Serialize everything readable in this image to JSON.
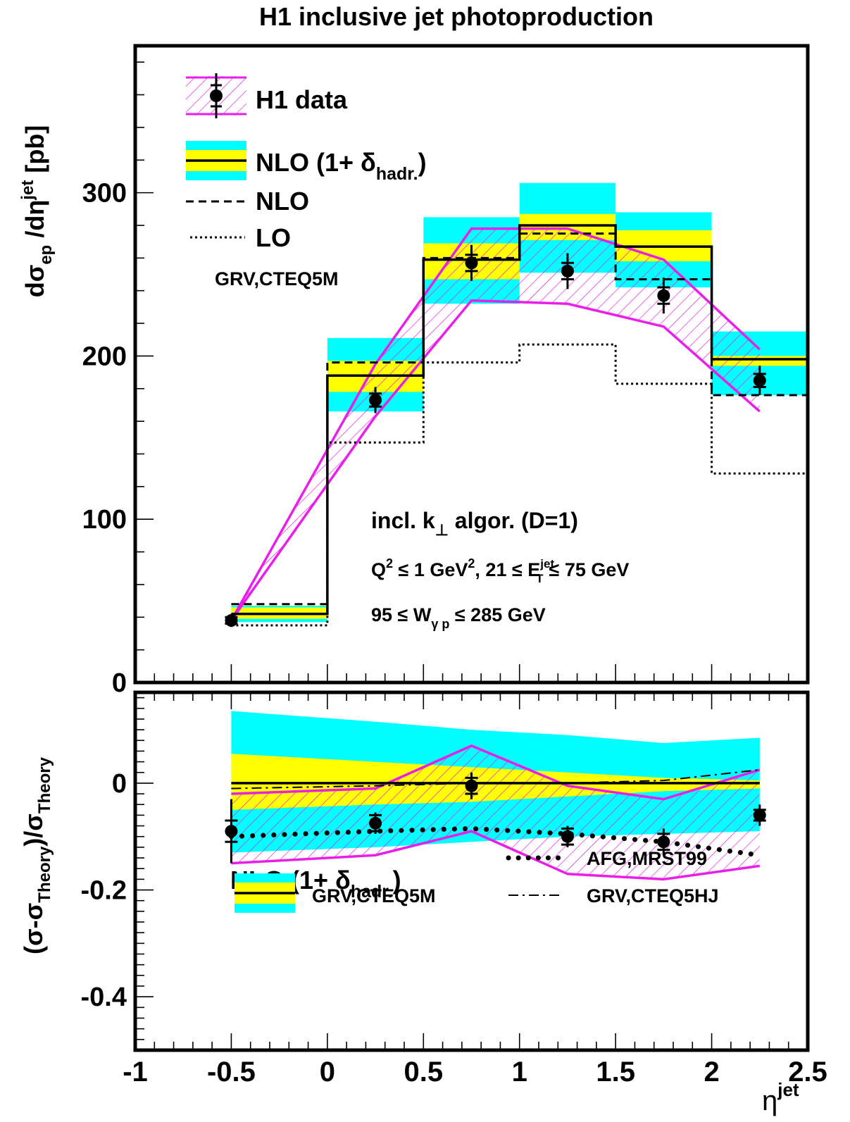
{
  "chart_data": [
    {
      "type": "line",
      "panel": "top",
      "title": "H1 inclusive jet photoproduction",
      "ylabel": "dσep /dη jet [pb]",
      "xlim": [
        -1,
        2.5
      ],
      "ylim": [
        0,
        390
      ],
      "y_ticks": [
        "0",
        "100",
        "200",
        "300"
      ],
      "grid": false,
      "legend_position": "top-left",
      "bin_edges": [
        -0.5,
        0,
        0.5,
        1,
        1.5,
        2,
        2.5
      ],
      "series": [
        {
          "name": "H1 data",
          "x": [
            -0.5,
            0.25,
            0.75,
            1.25,
            1.75,
            2.25
          ],
          "y": [
            38,
            173,
            257,
            252,
            237,
            185
          ],
          "err_stat": [
            2,
            4,
            5,
            5,
            5,
            4
          ],
          "err_tot": [
            4,
            8,
            11,
            11,
            11,
            9
          ],
          "band_low": [
            38,
            163,
            234,
            232,
            218,
            166
          ],
          "band_high": [
            38,
            195,
            278,
            278,
            259,
            204
          ],
          "band_color": "#e91ee9"
        },
        {
          "name": "NLO (1+ δhadr.)",
          "values": [
            42,
            188,
            259,
            280,
            267,
            198
          ],
          "scale_band_low": [
            37,
            166,
            232,
            251,
            242,
            176
          ],
          "scale_band_high": [
            47,
            211,
            285,
            306,
            288,
            215
          ],
          "hadr_band_low": [
            39,
            178,
            247,
            271,
            258,
            194
          ],
          "hadr_band_high": [
            46,
            197,
            269,
            287,
            277,
            200
          ]
        },
        {
          "name": "NLO",
          "values": [
            48,
            196,
            260,
            275,
            247,
            176
          ]
        },
        {
          "name": "LO",
          "values": [
            35,
            147,
            196,
            207,
            183,
            128
          ]
        }
      ],
      "legend": {
        "data": "H1 data",
        "nlo_had": "NLO (1+ δ",
        "nlo_had_sub": "hadr.",
        "nlo_had_close": ")",
        "nlo": "NLO",
        "lo": "LO",
        "pdf": "GRV,CTEQ5M"
      },
      "annotations": {
        "algo_main": "incl. k",
        "algo_sub": "⊥",
        "algo_rest": " algor. (D=1)",
        "q2_a": "Q",
        "q2_sup": "2",
        "q2_b": " ≤ 1 GeV",
        "q2_sup2": "2",
        "q2_c": ",  21 ≤ E",
        "et_sup": "jet",
        "et_sub": "T",
        "q2_d": "≤ 75 GeV",
        "w_a": "95 ≤ W",
        "w_sub": "γ p",
        "w_b": " ≤ 285 GeV"
      }
    },
    {
      "type": "line",
      "panel": "bottom",
      "ylabel": "(σ-σTheory)/σTheory",
      "xlabel": "η jet",
      "xlim": [
        -1,
        2.5
      ],
      "ylim": [
        -0.5,
        0.17
      ],
      "x_ticks": [
        "-1",
        "-0.5",
        "0",
        "0.5",
        "1",
        "1.5",
        "2",
        "2.5"
      ],
      "y_ticks": [
        "-0.4",
        "-0.2",
        "0"
      ],
      "grid": false,
      "x": [
        -0.5,
        0.25,
        0.75,
        1.25,
        1.75,
        2.25
      ],
      "series": [
        {
          "name": "H1 data",
          "y": [
            -0.09,
            -0.075,
            -0.005,
            -0.1,
            -0.11,
            -0.06
          ],
          "err_stat": [
            0.02,
            0.015,
            0.015,
            0.015,
            0.015,
            0.01
          ],
          "err_tot": [
            0.06,
            0.02,
            0.025,
            0.02,
            0.025,
            0.02
          ],
          "band_low": [
            -0.15,
            -0.135,
            -0.09,
            -0.17,
            -0.18,
            -0.155
          ],
          "band_high": [
            -0.02,
            -0.01,
            0.07,
            -0.005,
            -0.03,
            0.025
          ]
        },
        {
          "name": "GRV,CTEQ5M",
          "values": [
            0,
            0,
            0,
            0,
            0,
            0
          ],
          "scale_band_low": [
            -0.13,
            -0.12,
            -0.11,
            -0.1,
            -0.095,
            -0.09
          ],
          "scale_band_high": [
            0.135,
            0.115,
            0.1,
            0.09,
            0.075,
            0.085
          ],
          "hadr_band_low": [
            -0.05,
            -0.04,
            -0.035,
            -0.025,
            -0.015,
            -0.01
          ],
          "hadr_band_high": [
            0.055,
            0.04,
            0.03,
            0.02,
            0.01,
            0.005
          ]
        },
        {
          "name": "AFG,MRST99",
          "values": [
            -0.1,
            -0.09,
            -0.085,
            -0.095,
            -0.11,
            -0.135
          ]
        },
        {
          "name": "GRV,CTEQ5HJ",
          "values": [
            -0.01,
            -0.005,
            0.0,
            0.0,
            0.005,
            0.025
          ]
        }
      ],
      "legend": {
        "header": "NLO (1+ δ",
        "header_sub": "hadr.",
        "header_close": ")",
        "grv5m": "GRV,CTEQ5M",
        "afg": "AFG,MRST99",
        "grv5hj": "GRV,CTEQ5HJ"
      }
    }
  ],
  "colors": {
    "cyan": "#00ffff",
    "yellow": "#ffff00",
    "magenta": "#e91ee9",
    "black": "#000000"
  },
  "labels": {
    "ylabel_top_main": "dσ",
    "ylabel_top_sub1": "ep",
    "ylabel_top_mid": " /dη",
    "ylabel_top_sup": "jet",
    "ylabel_top_unit": "  [pb]",
    "ylabel_bot_a": "(σ-σ",
    "ylabel_bot_sub1": "Theory",
    "ylabel_bot_b": ")/σ",
    "ylabel_bot_sub2": "Theory",
    "xlabel_main": "η",
    "xlabel_sup": "jet"
  }
}
